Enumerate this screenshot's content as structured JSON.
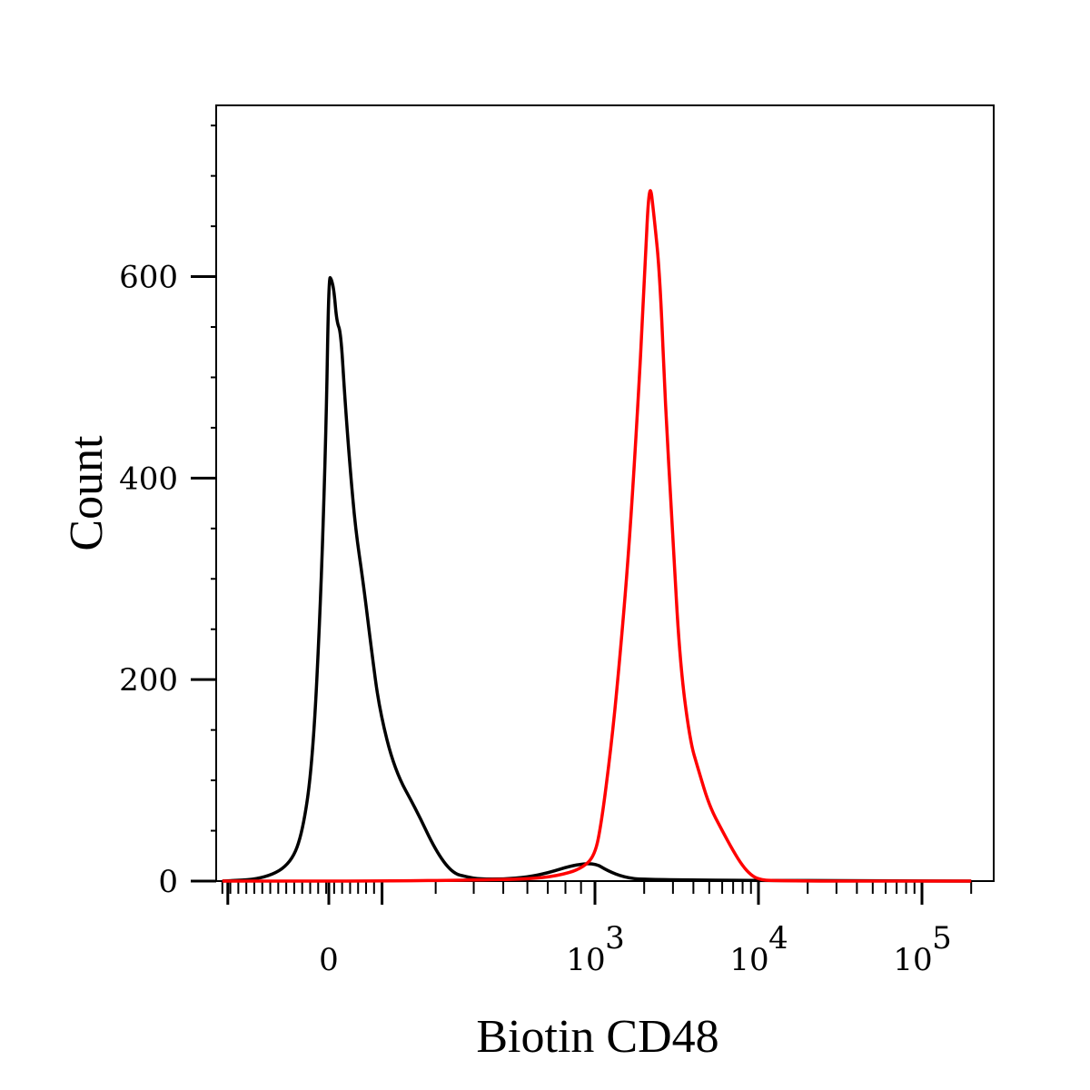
{
  "chart_data": {
    "type": "line",
    "xlabel": "Biotin CD48",
    "ylabel": "Count",
    "x_scale": "biexponential",
    "xlim": [
      -400,
      200000
    ],
    "ylim": [
      0,
      770
    ],
    "grid": false,
    "legend": "none",
    "y_ticks": [
      {
        "value": 0,
        "label": "0"
      },
      {
        "value": 200,
        "label": "200"
      },
      {
        "value": 400,
        "label": "400"
      },
      {
        "value": 600,
        "label": "600"
      }
    ],
    "x_ticks": [
      {
        "value": 0,
        "label": "0",
        "sup": ""
      },
      {
        "value": 1000,
        "label": "10",
        "sup": "3"
      },
      {
        "value": 10000,
        "label": "10",
        "sup": "4"
      },
      {
        "value": 100000,
        "label": "10",
        "sup": "5"
      }
    ],
    "series": [
      {
        "color": "#000000",
        "x": [
          -400,
          -250,
          -150,
          -100,
          -60,
          -30,
          -10,
          0,
          10,
          20,
          30,
          45,
          60,
          80,
          100,
          130,
          160,
          190,
          220,
          260,
          300,
          340,
          380,
          420,
          500,
          600,
          700,
          850,
          1000,
          1200,
          1500,
          2000,
          200000
        ],
        "y": [
          0,
          2,
          15,
          45,
          120,
          280,
          450,
          600,
          598,
          585,
          555,
          545,
          480,
          410,
          350,
          295,
          230,
          170,
          110,
          70,
          30,
          8,
          4,
          2,
          2,
          4,
          8,
          16,
          18,
          10,
          4,
          1,
          0
        ]
      },
      {
        "color": "#ff0000",
        "x": [
          -400,
          200,
          400,
          600,
          750,
          900,
          1000,
          1100,
          1250,
          1400,
          1600,
          1800,
          2000,
          2150,
          2300,
          2500,
          2700,
          3000,
          3300,
          3800,
          4300,
          5000,
          6000,
          7000,
          8000,
          9000,
          10000,
          12000,
          200000
        ],
        "y": [
          0,
          0,
          1,
          2,
          5,
          12,
          25,
          60,
          130,
          210,
          320,
          450,
          590,
          700,
          660,
          600,
          470,
          340,
          220,
          140,
          110,
          75,
          50,
          30,
          15,
          6,
          2,
          0,
          0
        ]
      }
    ]
  }
}
